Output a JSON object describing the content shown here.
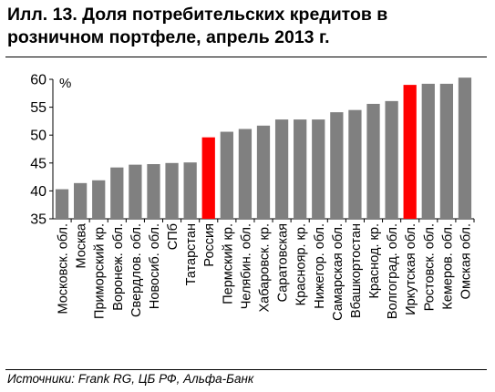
{
  "header": {
    "title_line1": "Илл. 13. Доля потребительских кредитов в",
    "title_line2": "розничном портфеле, апрель 2013 г."
  },
  "footer": {
    "source": "Источники: Frank RG, ЦБ РФ, Альфа-Банк"
  },
  "chart_data": {
    "type": "bar",
    "unit_label": "%",
    "ylim": [
      35,
      60
    ],
    "yticks": [
      35,
      40,
      45,
      50,
      55,
      60
    ],
    "grid": false,
    "legend": "none",
    "colors": {
      "default": "#808080",
      "highlight": "#ff0000"
    },
    "categories": [
      "Московск. обл.",
      "Москва",
      "Приморский кр.",
      "Воронеж. обл.",
      "Свердлов. обл.",
      "Новосиб. обл.",
      "СПб",
      "Татарстан",
      "Россия",
      "Пермский кр.",
      "Челябин. обл.",
      "Хабаровск. кр.",
      "Саратовская",
      "Краснояр. кр.",
      "Нижегор. обл.",
      "Самарская обл.",
      "Вбашкортостан",
      "Краснод. кр.",
      "Волгоград. обл.",
      "Иркутская обл.",
      "Ростовск. обл.",
      "Кемеров. обл.",
      "Омская обл."
    ],
    "values": [
      40.3,
      41.4,
      41.9,
      44.2,
      44.7,
      44.8,
      45.0,
      45.1,
      49.6,
      50.6,
      51.1,
      51.7,
      52.8,
      52.8,
      52.8,
      54.1,
      54.5,
      55.6,
      56.1,
      59.0,
      59.2,
      59.2,
      60.3
    ],
    "highlighted": [
      "Россия",
      "Иркутская обл."
    ]
  }
}
